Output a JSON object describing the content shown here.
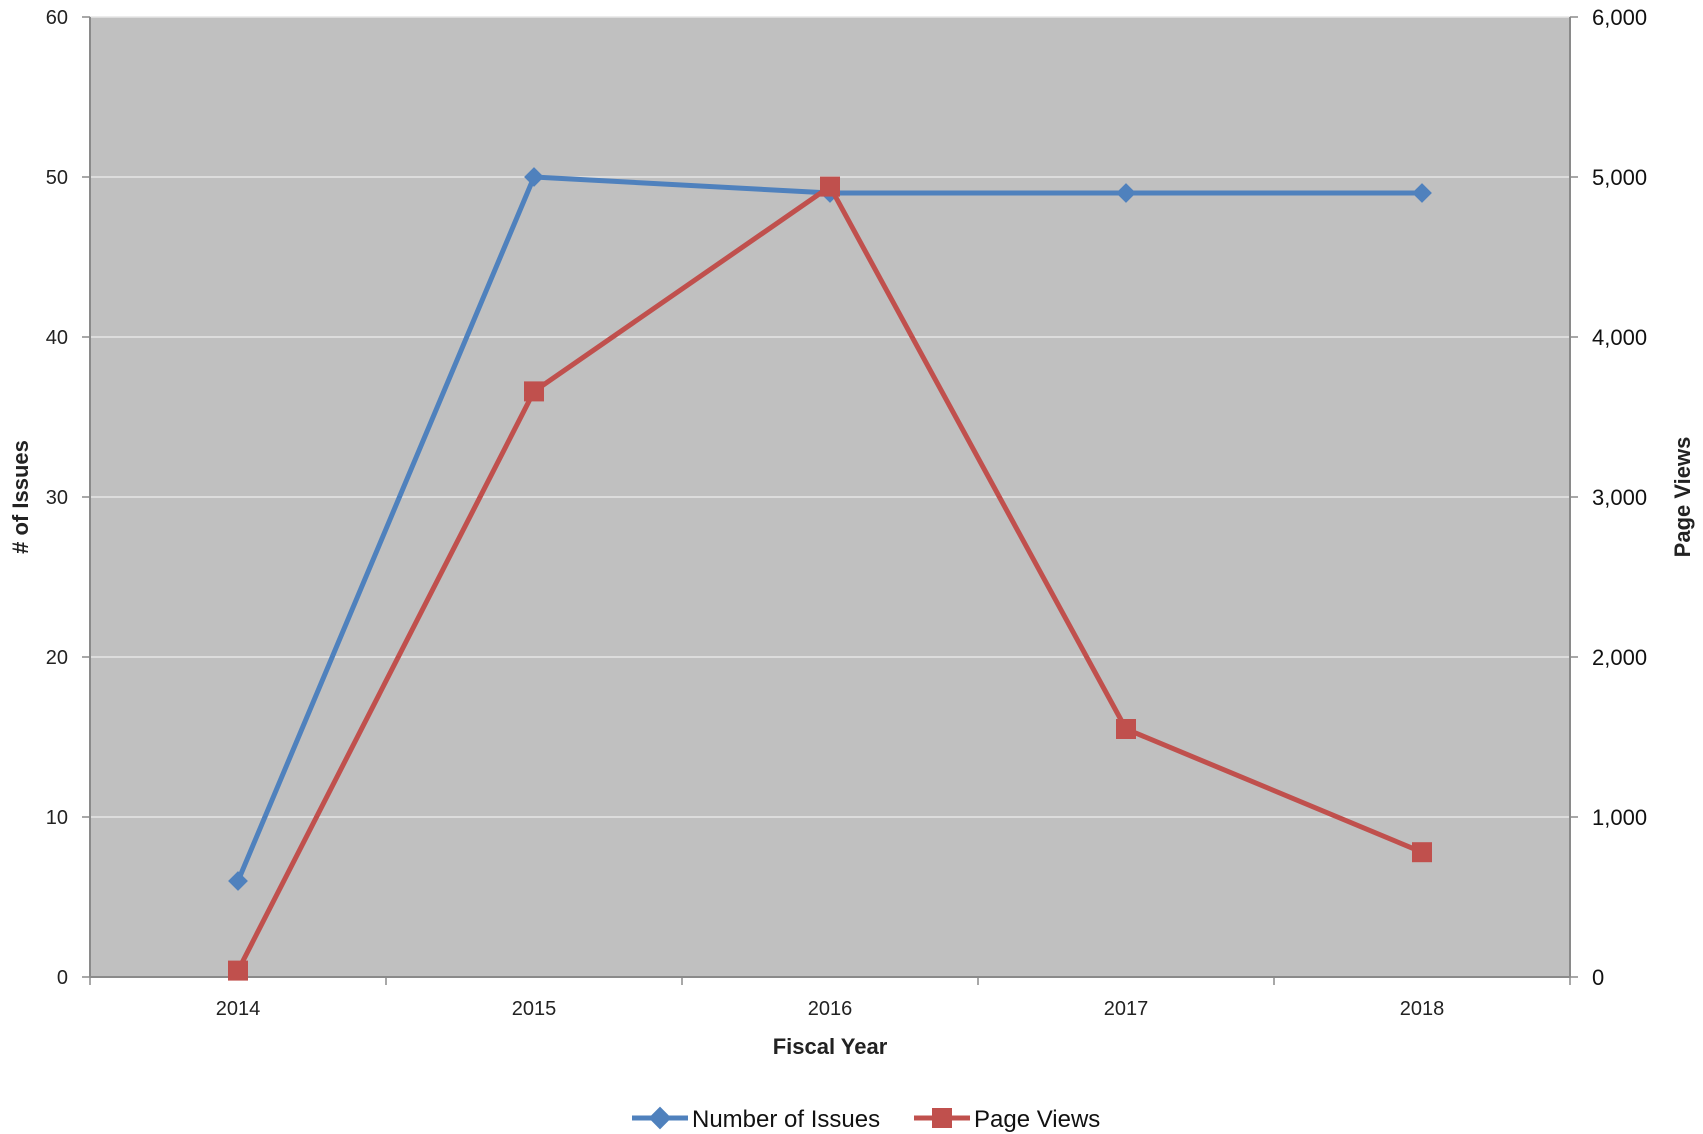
{
  "chart_data": {
    "type": "line",
    "categories": [
      "2014",
      "2015",
      "2016",
      "2017",
      "2018"
    ],
    "xlabel": "Fiscal Year",
    "ylabel": "# of Issues",
    "y2label": "Page Views",
    "ylim": [
      0,
      60
    ],
    "y2lim": [
      0,
      6000
    ],
    "yticks": [
      "0",
      "10",
      "20",
      "30",
      "40",
      "50",
      "60"
    ],
    "y2ticks": [
      "0",
      "1,000",
      "2,000",
      "3,000",
      "4,000",
      "5,000",
      "6,000"
    ],
    "grid": true,
    "legend_position": "bottom",
    "plot_background": "#c0c0c0",
    "series": [
      {
        "name": "Number of Issues",
        "axis": "left",
        "marker": "diamond",
        "color": "#4f81bd",
        "values": [
          6,
          50,
          49,
          49,
          49
        ]
      },
      {
        "name": "Page Views",
        "axis": "right",
        "marker": "square",
        "color": "#c0504d",
        "values": [
          40,
          3660,
          4940,
          1550,
          780
        ]
      }
    ]
  }
}
